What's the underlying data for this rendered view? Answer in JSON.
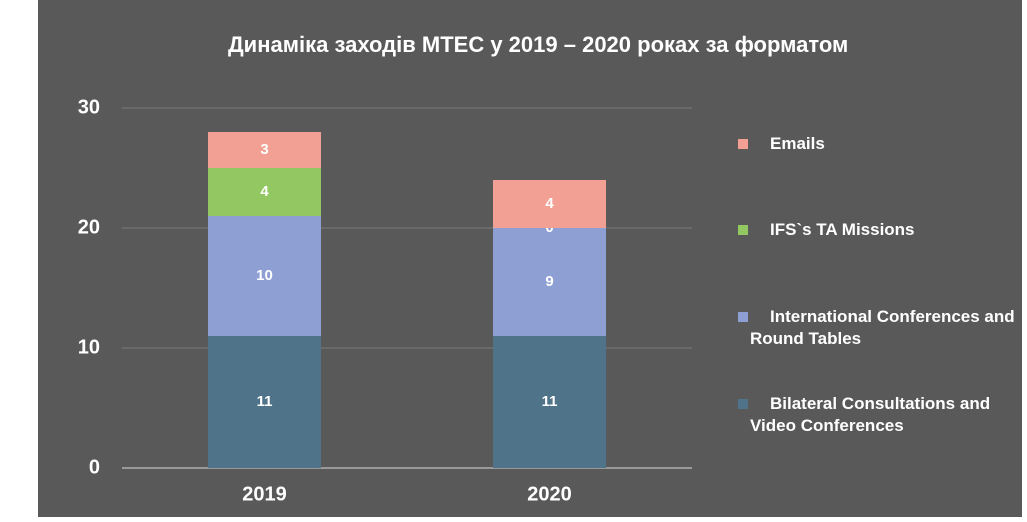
{
  "chart_data": {
    "type": "stacked_bar",
    "title": "Динаміка заходів МТЕС у 2019 – 2020 роках за форматом",
    "categories": [
      "2019",
      "2020"
    ],
    "series": [
      {
        "name": "Bilateral Consultations and Video Conferences",
        "color": "#4f7489",
        "values": [
          11,
          11
        ]
      },
      {
        "name": "International Conferences and Round Tables",
        "color": "#8e9fd3",
        "values": [
          10,
          9
        ]
      },
      {
        "name": "IFS`s TA Missions",
        "color": "#92c761",
        "values": [
          4,
          0
        ]
      },
      {
        "name": "Emails",
        "color": "#f3a094",
        "values": [
          3,
          4
        ]
      }
    ],
    "ylim": [
      0,
      30
    ],
    "yticks": [
      0,
      10,
      20,
      30
    ],
    "grid": true,
    "legend": "right"
  }
}
